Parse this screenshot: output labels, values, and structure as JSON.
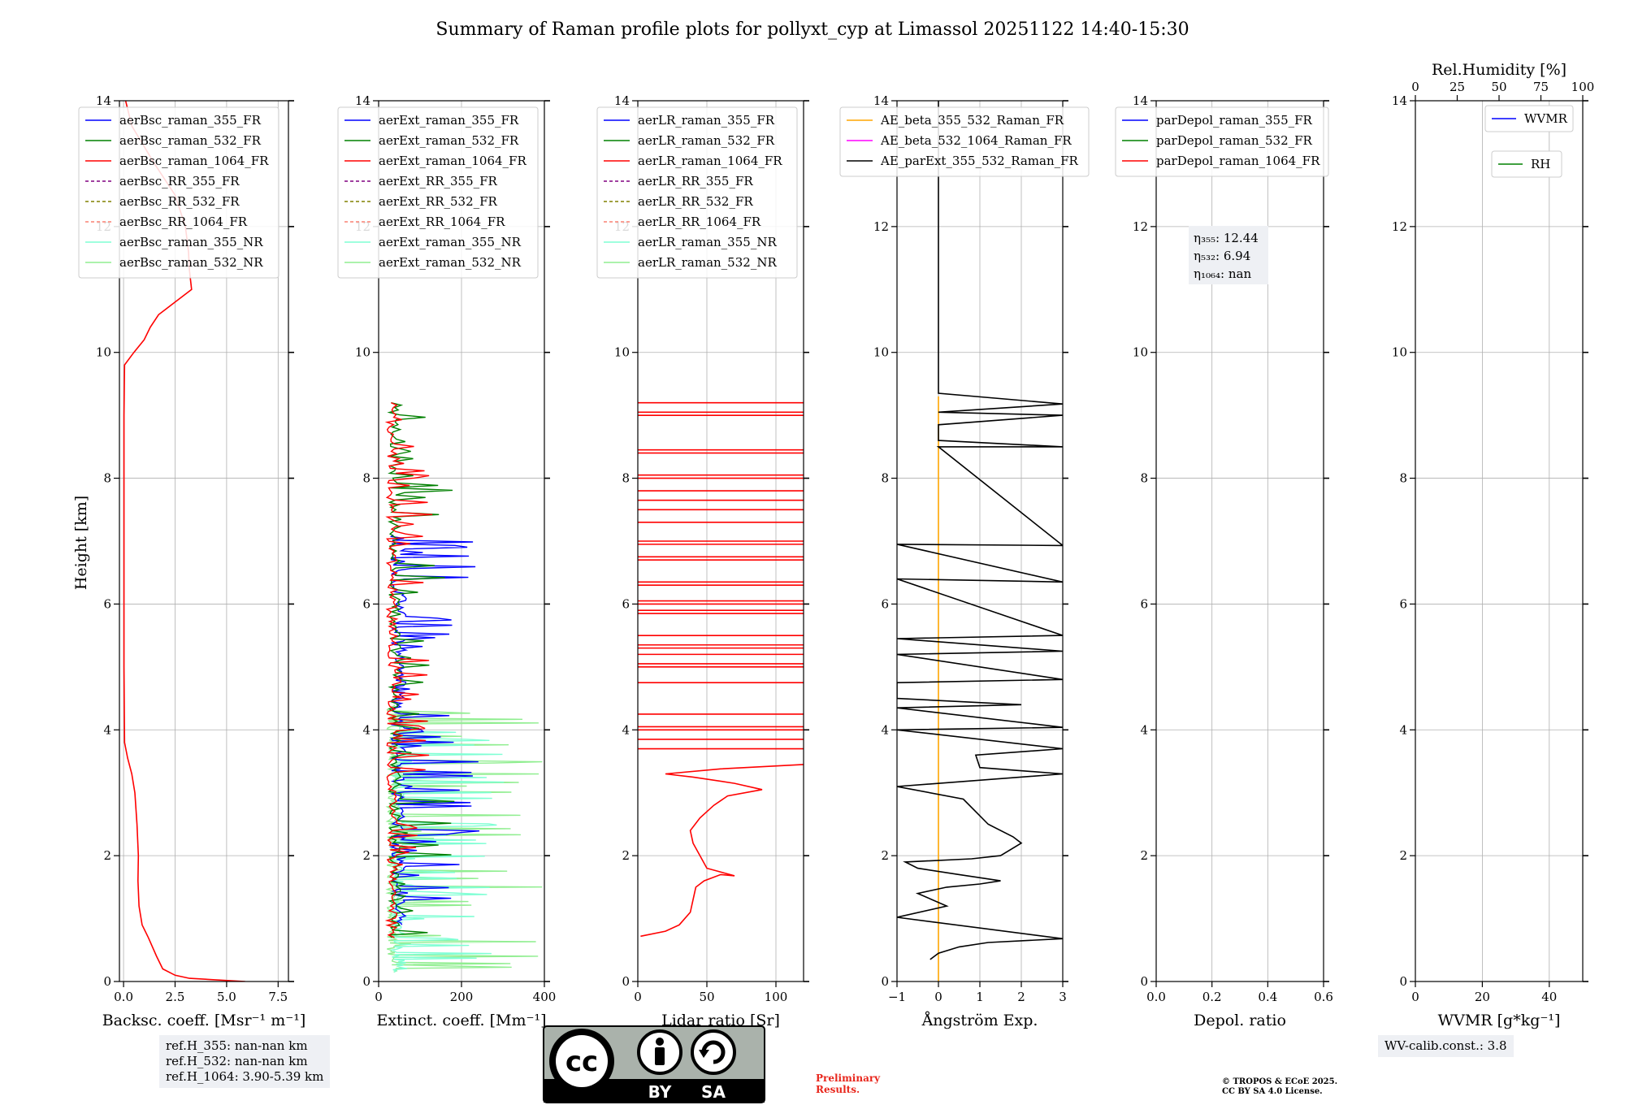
{
  "title": "Summary of Raman profile plots for pollyxt_cyp at Limassol 20251122 14:40-15:30",
  "common": {
    "ylabel": "Height [km]",
    "yticks": [
      0,
      2,
      4,
      6,
      8,
      10,
      12,
      14
    ],
    "ylim": [
      0,
      14
    ]
  },
  "colors": {
    "blue": "#0000ff",
    "green": "#008000",
    "red": "#ff0000",
    "purple": "#800080",
    "olive": "#808000",
    "salmon": "#fa8072",
    "cyan": "#7fffd4",
    "lightgreen": "#90ee90",
    "orange": "#ffa500",
    "magenta": "#ff00ff",
    "black": "#000000"
  },
  "chart_data": [
    {
      "id": "backscatter",
      "type": "line",
      "xlabel": "Backsc. coeff. [Msr⁻¹ m⁻¹]",
      "xlim": [
        -0.2,
        8
      ],
      "xticks": [
        0.0,
        2.5,
        5.0,
        7.5
      ],
      "xtick_labels": [
        "0.0",
        "2.5",
        "5.0",
        "7.5"
      ],
      "legend": [
        {
          "label": "aerBsc_raman_355_FR",
          "color": "blue",
          "dash": false
        },
        {
          "label": "aerBsc_raman_532_FR",
          "color": "green",
          "dash": false
        },
        {
          "label": "aerBsc_raman_1064_FR",
          "color": "red",
          "dash": false
        },
        {
          "label": "aerBsc_RR_355_FR",
          "color": "purple",
          "dash": true
        },
        {
          "label": "aerBsc_RR_532_FR",
          "color": "olive",
          "dash": true
        },
        {
          "label": "aerBsc_RR_1064_FR",
          "color": "salmon",
          "dash": true
        },
        {
          "label": "aerBsc_raman_355_NR",
          "color": "cyan",
          "dash": false
        },
        {
          "label": "aerBsc_raman_532_NR",
          "color": "lightgreen",
          "dash": false
        }
      ],
      "series": [
        {
          "name": "aerBsc_raman_1064_FR",
          "color": "red",
          "style": "line",
          "points": [
            [
              5.9,
              0.0
            ],
            [
              3.2,
              0.05
            ],
            [
              2.5,
              0.1
            ],
            [
              1.9,
              0.2
            ],
            [
              1.6,
              0.4
            ],
            [
              1.2,
              0.7
            ],
            [
              0.9,
              0.9
            ],
            [
              0.75,
              1.2
            ],
            [
              0.7,
              1.6
            ],
            [
              0.72,
              2.0
            ],
            [
              0.65,
              2.5
            ],
            [
              0.55,
              3.0
            ],
            [
              0.4,
              3.3
            ],
            [
              0.2,
              3.55
            ],
            [
              0.05,
              3.8
            ],
            [
              0.02,
              5.0
            ],
            [
              0.02,
              7.0
            ],
            [
              0.02,
              9.0
            ],
            [
              0.05,
              9.8
            ],
            [
              0.5,
              10.0
            ],
            [
              1.0,
              10.2
            ],
            [
              1.3,
              10.4
            ],
            [
              1.7,
              10.6
            ],
            [
              2.5,
              10.8
            ],
            [
              3.3,
              11.0
            ],
            [
              3.2,
              11.3
            ],
            [
              3.15,
              11.6
            ],
            [
              3.0,
              12.0
            ],
            [
              2.5,
              12.5
            ],
            [
              1.5,
              13.0
            ],
            [
              0.4,
              13.6
            ],
            [
              0.1,
              14.0
            ]
          ]
        }
      ]
    },
    {
      "id": "extinction",
      "type": "line",
      "xlabel": "Extinct. coeff. [Mm⁻¹]",
      "xlim": [
        0,
        400
      ],
      "xticks": [
        0,
        200,
        400
      ],
      "xtick_labels": [
        "0",
        "200",
        "400"
      ],
      "legend": [
        {
          "label": "aerExt_raman_355_FR",
          "color": "blue",
          "dash": false
        },
        {
          "label": "aerExt_raman_532_FR",
          "color": "green",
          "dash": false
        },
        {
          "label": "aerExt_raman_1064_FR",
          "color": "red",
          "dash": false
        },
        {
          "label": "aerExt_RR_355_FR",
          "color": "purple",
          "dash": true
        },
        {
          "label": "aerExt_RR_532_FR",
          "color": "olive",
          "dash": true
        },
        {
          "label": "aerExt_RR_1064_FR",
          "color": "salmon",
          "dash": true
        },
        {
          "label": "aerExt_raman_355_NR",
          "color": "cyan",
          "dash": false
        },
        {
          "label": "aerExt_raman_532_NR",
          "color": "lightgreen",
          "dash": false
        }
      ],
      "series": [
        {
          "name": "aerExt_raman_532_NR",
          "color": "lightgreen",
          "style": "spiky",
          "ymin": 0.15,
          "ymax": 4.4,
          "base": 20,
          "amp": 380
        },
        {
          "name": "aerExt_raman_355_NR",
          "color": "cyan",
          "style": "spiky",
          "ymin": 0.15,
          "ymax": 4.2,
          "base": 30,
          "amp": 300
        },
        {
          "name": "aerExt_raman_355_FR",
          "color": "blue",
          "style": "spiky",
          "ymin": 0.9,
          "ymax": 7.1,
          "base": 30,
          "amp": 220
        },
        {
          "name": "aerExt_raman_532_FR",
          "color": "green",
          "style": "spiky",
          "ymin": 0.7,
          "ymax": 9.2,
          "base": 25,
          "amp": 160
        },
        {
          "name": "aerExt_raman_1064_FR",
          "color": "red",
          "style": "spiky",
          "ymin": 0.7,
          "ymax": 9.2,
          "base": 20,
          "amp": 110
        }
      ]
    },
    {
      "id": "lidar_ratio",
      "type": "line",
      "xlabel": "Lidar ratio [Sr]",
      "xlim": [
        0,
        120
      ],
      "xticks": [
        0,
        50,
        100
      ],
      "xtick_labels": [
        "0",
        "50",
        "100"
      ],
      "legend": [
        {
          "label": "aerLR_raman_355_FR",
          "color": "blue",
          "dash": false
        },
        {
          "label": "aerLR_raman_532_FR",
          "color": "green",
          "dash": false
        },
        {
          "label": "aerLR_raman_1064_FR",
          "color": "red",
          "dash": false
        },
        {
          "label": "aerLR_RR_355_FR",
          "color": "purple",
          "dash": true
        },
        {
          "label": "aerLR_RR_532_FR",
          "color": "olive",
          "dash": true
        },
        {
          "label": "aerLR_RR_1064_FR",
          "color": "salmon",
          "dash": true
        },
        {
          "label": "aerLR_raman_355_NR",
          "color": "cyan",
          "dash": false
        },
        {
          "label": "aerLR_raman_532_NR",
          "color": "lightgreen",
          "dash": false
        }
      ],
      "series": [
        {
          "name": "aerLR_raman_1064_FR",
          "color": "red",
          "style": "line",
          "points": [
            [
              2,
              0.72
            ],
            [
              20,
              0.8
            ],
            [
              30,
              0.9
            ],
            [
              38,
              1.1
            ],
            [
              40,
              1.3
            ],
            [
              42,
              1.5
            ],
            [
              48,
              1.6
            ],
            [
              60,
              1.7
            ],
            [
              70,
              1.68
            ],
            [
              50,
              1.8
            ],
            [
              45,
              2.0
            ],
            [
              40,
              2.2
            ],
            [
              38,
              2.4
            ],
            [
              45,
              2.6
            ],
            [
              55,
              2.8
            ],
            [
              65,
              2.95
            ],
            [
              90,
              3.05
            ],
            [
              70,
              3.15
            ],
            [
              40,
              3.25
            ],
            [
              20,
              3.3
            ],
            [
              60,
              3.38
            ],
            [
              120,
              3.45
            ]
          ]
        },
        {
          "name": "aerLR_raman_1064_FR_spikes",
          "color": "red",
          "style": "hlines",
          "heights": [
            3.7,
            3.85,
            4.0,
            4.05,
            4.25,
            4.75,
            5.0,
            5.05,
            5.2,
            5.3,
            5.35,
            5.5,
            5.85,
            5.9,
            6.0,
            6.05,
            6.3,
            6.35,
            6.7,
            6.75,
            6.95,
            7.0,
            7.3,
            7.5,
            7.65,
            7.8,
            8.0,
            8.05,
            8.4,
            8.45,
            9.0,
            9.05,
            9.2
          ]
        }
      ]
    },
    {
      "id": "angstrom",
      "type": "line",
      "xlabel": "Ångström Exp.",
      "xlim": [
        -1,
        3
      ],
      "xticks": [
        -1,
        0,
        1,
        2,
        3
      ],
      "xtick_labels": [
        "−1",
        "0",
        "1",
        "2",
        "3"
      ],
      "legend": [
        {
          "label": "AE_beta_355_532_Raman_FR",
          "color": "orange",
          "dash": false
        },
        {
          "label": "AE_beta_532_1064_Raman_FR",
          "color": "magenta",
          "dash": false
        },
        {
          "label": "AE_parExt_355_532_Raman_FR",
          "color": "black",
          "dash": false
        }
      ],
      "series": [
        {
          "name": "AE_beta_355_532_Raman_FR",
          "color": "orange",
          "style": "line",
          "points": [
            [
              0.0,
              0.0
            ],
            [
              0.0,
              9.3
            ]
          ]
        },
        {
          "name": "AE_parExt_355_532_Raman_FR",
          "color": "black",
          "style": "line",
          "points": [
            [
              -0.2,
              0.35
            ],
            [
              0.0,
              0.45
            ],
            [
              0.5,
              0.55
            ],
            [
              1.2,
              0.62
            ],
            [
              3.0,
              0.68
            ],
            [
              -1.0,
              1.02
            ],
            [
              0.2,
              1.2
            ],
            [
              -0.5,
              1.4
            ],
            [
              0.2,
              1.5
            ],
            [
              1.0,
              1.55
            ],
            [
              1.5,
              1.6
            ],
            [
              0.5,
              1.7
            ],
            [
              -0.5,
              1.8
            ],
            [
              -0.8,
              1.9
            ],
            [
              0.8,
              1.95
            ],
            [
              1.5,
              2.0
            ],
            [
              2.0,
              2.2
            ],
            [
              1.8,
              2.3
            ],
            [
              1.2,
              2.5
            ],
            [
              0.9,
              2.7
            ],
            [
              0.6,
              2.9
            ],
            [
              -1.0,
              3.1
            ],
            [
              3.0,
              3.3
            ],
            [
              1.0,
              3.4
            ],
            [
              0.9,
              3.6
            ],
            [
              3.0,
              3.7
            ],
            [
              -1.0,
              4.0
            ],
            [
              3.0,
              4.04
            ],
            [
              -1.0,
              4.35
            ],
            [
              2.0,
              4.4
            ],
            [
              -1.0,
              4.5
            ],
            [
              -1.0,
              4.75
            ],
            [
              3.0,
              4.8
            ],
            [
              -1.0,
              5.2
            ],
            [
              3.0,
              5.25
            ],
            [
              -1.0,
              5.45
            ],
            [
              3.0,
              5.5
            ],
            [
              -1.0,
              6.4
            ],
            [
              3.0,
              6.35
            ],
            [
              -1.0,
              6.95
            ],
            [
              3.0,
              6.93
            ],
            [
              0.0,
              8.5
            ],
            [
              3.0,
              8.5
            ],
            [
              0.0,
              8.6
            ],
            [
              0.0,
              8.85
            ],
            [
              3.0,
              9.0
            ],
            [
              0.0,
              9.05
            ],
            [
              3.0,
              9.18
            ],
            [
              0.0,
              9.35
            ],
            [
              0.0,
              14.0
            ]
          ]
        }
      ]
    },
    {
      "id": "depol",
      "type": "line",
      "xlabel": "Depol. ratio",
      "xlim": [
        0,
        0.6
      ],
      "xticks": [
        0,
        0.2,
        0.4,
        0.6
      ],
      "xtick_labels": [
        "0.0",
        "0.2",
        "0.4",
        "0.6"
      ],
      "legend": [
        {
          "label": "parDepol_raman_355_FR",
          "color": "blue",
          "dash": false
        },
        {
          "label": "parDepol_raman_532_FR",
          "color": "green",
          "dash": false
        },
        {
          "label": "parDepol_raman_1064_FR",
          "color": "red",
          "dash": false
        }
      ],
      "annotation": [
        "η₃₅₅: 12.44",
        "η₅₃₂: 6.94",
        "η₁₀₆₄: nan"
      ],
      "series": []
    },
    {
      "id": "wvmr",
      "type": "line",
      "xlabel": "WVMR [g*kg⁻¹]",
      "xlim": [
        0,
        50
      ],
      "xticks": [
        0,
        20,
        40
      ],
      "xtick_labels": [
        "0",
        "20",
        "40"
      ],
      "top_axis": {
        "label": "Rel.Humidity [%]",
        "ticks": [
          0,
          25,
          50,
          75,
          100
        ],
        "xlim": [
          0,
          100
        ]
      },
      "legend": [
        {
          "label": "WVMR",
          "color": "blue",
          "dash": false
        },
        {
          "label": "RH",
          "color": "green",
          "dash": false
        }
      ],
      "series": []
    }
  ],
  "notes": {
    "refH": [
      "ref.H_355: nan-nan km",
      "ref.H_532: nan-nan km",
      "ref.H_1064: 3.90-5.39 km"
    ],
    "wv_calib": "WV-calib.const.: 3.8",
    "preliminary": [
      "Preliminary",
      "Results."
    ],
    "copyright": [
      "© TROPOS & ECoE 2025.",
      "CC BY SA 4.0 License."
    ],
    "cc_badge": {
      "by": "BY",
      "sa": "SA",
      "cc": "cc"
    }
  }
}
